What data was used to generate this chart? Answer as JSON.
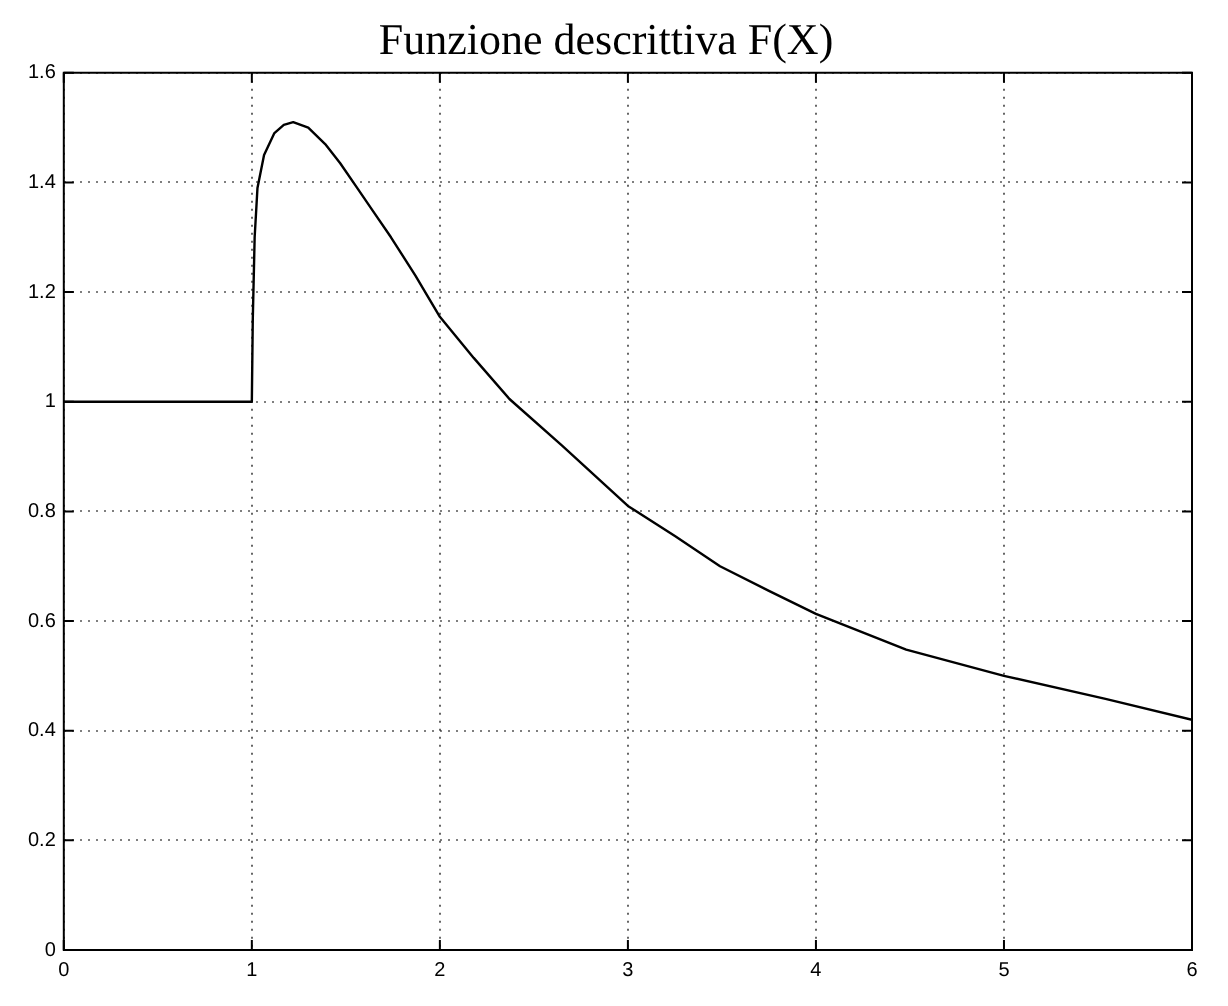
{
  "chart_data": {
    "type": "line",
    "title": "Funzione descrittiva F(X)",
    "x": [
      0,
      0.5,
      1,
      1,
      1.005,
      1.015,
      1.03,
      1.065,
      1.12,
      1.17,
      1.22,
      1.3,
      1.39,
      1.47,
      1.56,
      1.65,
      1.74,
      1.87,
      2,
      2.18,
      2.37,
      2.65,
      3,
      3.25,
      3.49,
      3.75,
      4,
      4.48,
      5,
      5.54,
      6
    ],
    "series": [
      {
        "color": "#000000",
        "values": [
          1,
          1,
          1,
          1,
          1.15,
          1.3,
          1.39,
          1.45,
          1.49,
          1.505,
          1.51,
          1.5,
          1.47,
          1.435,
          1.39,
          1.345,
          1.3,
          1.23,
          1.155,
          1.08,
          1.005,
          0.92,
          0.81,
          0.755,
          0.7,
          0.655,
          0.613,
          0.548,
          0.5,
          0.458,
          0.42
        ]
      }
    ],
    "xlim": [
      0,
      6
    ],
    "xticks": [
      0,
      1,
      2,
      3,
      4,
      5,
      6
    ],
    "ylim": [
      0,
      1.6
    ],
    "yticks": [
      0,
      0.2,
      0.4,
      0.6,
      0.8,
      1,
      1.2,
      1.4,
      1.6
    ],
    "grid": true,
    "legend": false,
    "marker": "none",
    "line_style": "solid"
  }
}
